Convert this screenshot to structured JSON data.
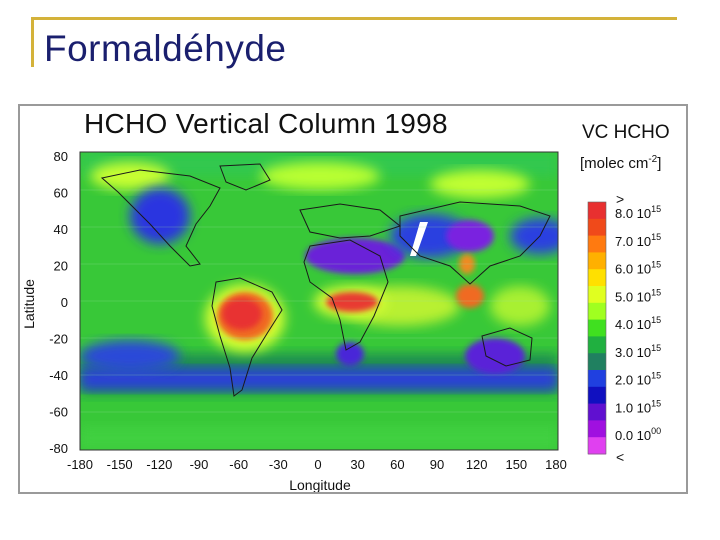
{
  "slide": {
    "title": "Formaldéhyde"
  },
  "figure": {
    "title": "HCHO Vertical Column 1998",
    "xlabel": "Longitude",
    "ylabel": "Latitude",
    "x_ticks": [
      "-180",
      "-150",
      "-120",
      "-90",
      "-60",
      "-30",
      "0",
      "30",
      "60",
      "90",
      "120",
      "150",
      "180"
    ],
    "y_ticks": [
      "80",
      "60",
      "40",
      "20",
      "0",
      "-20",
      "-40",
      "-60",
      "-80"
    ],
    "legend": {
      "title": "VC HCHO",
      "units_prefix": "[molec cm",
      "units_exp": "-2",
      "units_suffix": "]",
      "top_symbol": ">",
      "bottom_symbol": "<",
      "labels": [
        {
          "mantissa": "8.0 10",
          "exp": "15"
        },
        {
          "mantissa": "7.0 10",
          "exp": "15"
        },
        {
          "mantissa": "6.0 10",
          "exp": "15"
        },
        {
          "mantissa": "5.0 10",
          "exp": "15"
        },
        {
          "mantissa": "4.0 10",
          "exp": "15"
        },
        {
          "mantissa": "3.0 10",
          "exp": "15"
        },
        {
          "mantissa": "2.0 10",
          "exp": "15"
        },
        {
          "mantissa": "1.0 10",
          "exp": "15"
        },
        {
          "mantissa": "0.0 10",
          "exp": "00"
        }
      ],
      "colors": [
        "#e83030",
        "#f04a1a",
        "#ff7a10",
        "#ffb000",
        "#ffe000",
        "#e0ff20",
        "#a0ff20",
        "#40e020",
        "#20b040",
        "#208060",
        "#2040e0",
        "#1010c0",
        "#6010d0",
        "#a010e0",
        "#e040f0"
      ]
    },
    "colors": {
      "ocean": "#1c8a3c",
      "low": "#2a36e0",
      "mid": "#50dc30",
      "high": "#d8ff30",
      "hot": "#e83030"
    }
  }
}
